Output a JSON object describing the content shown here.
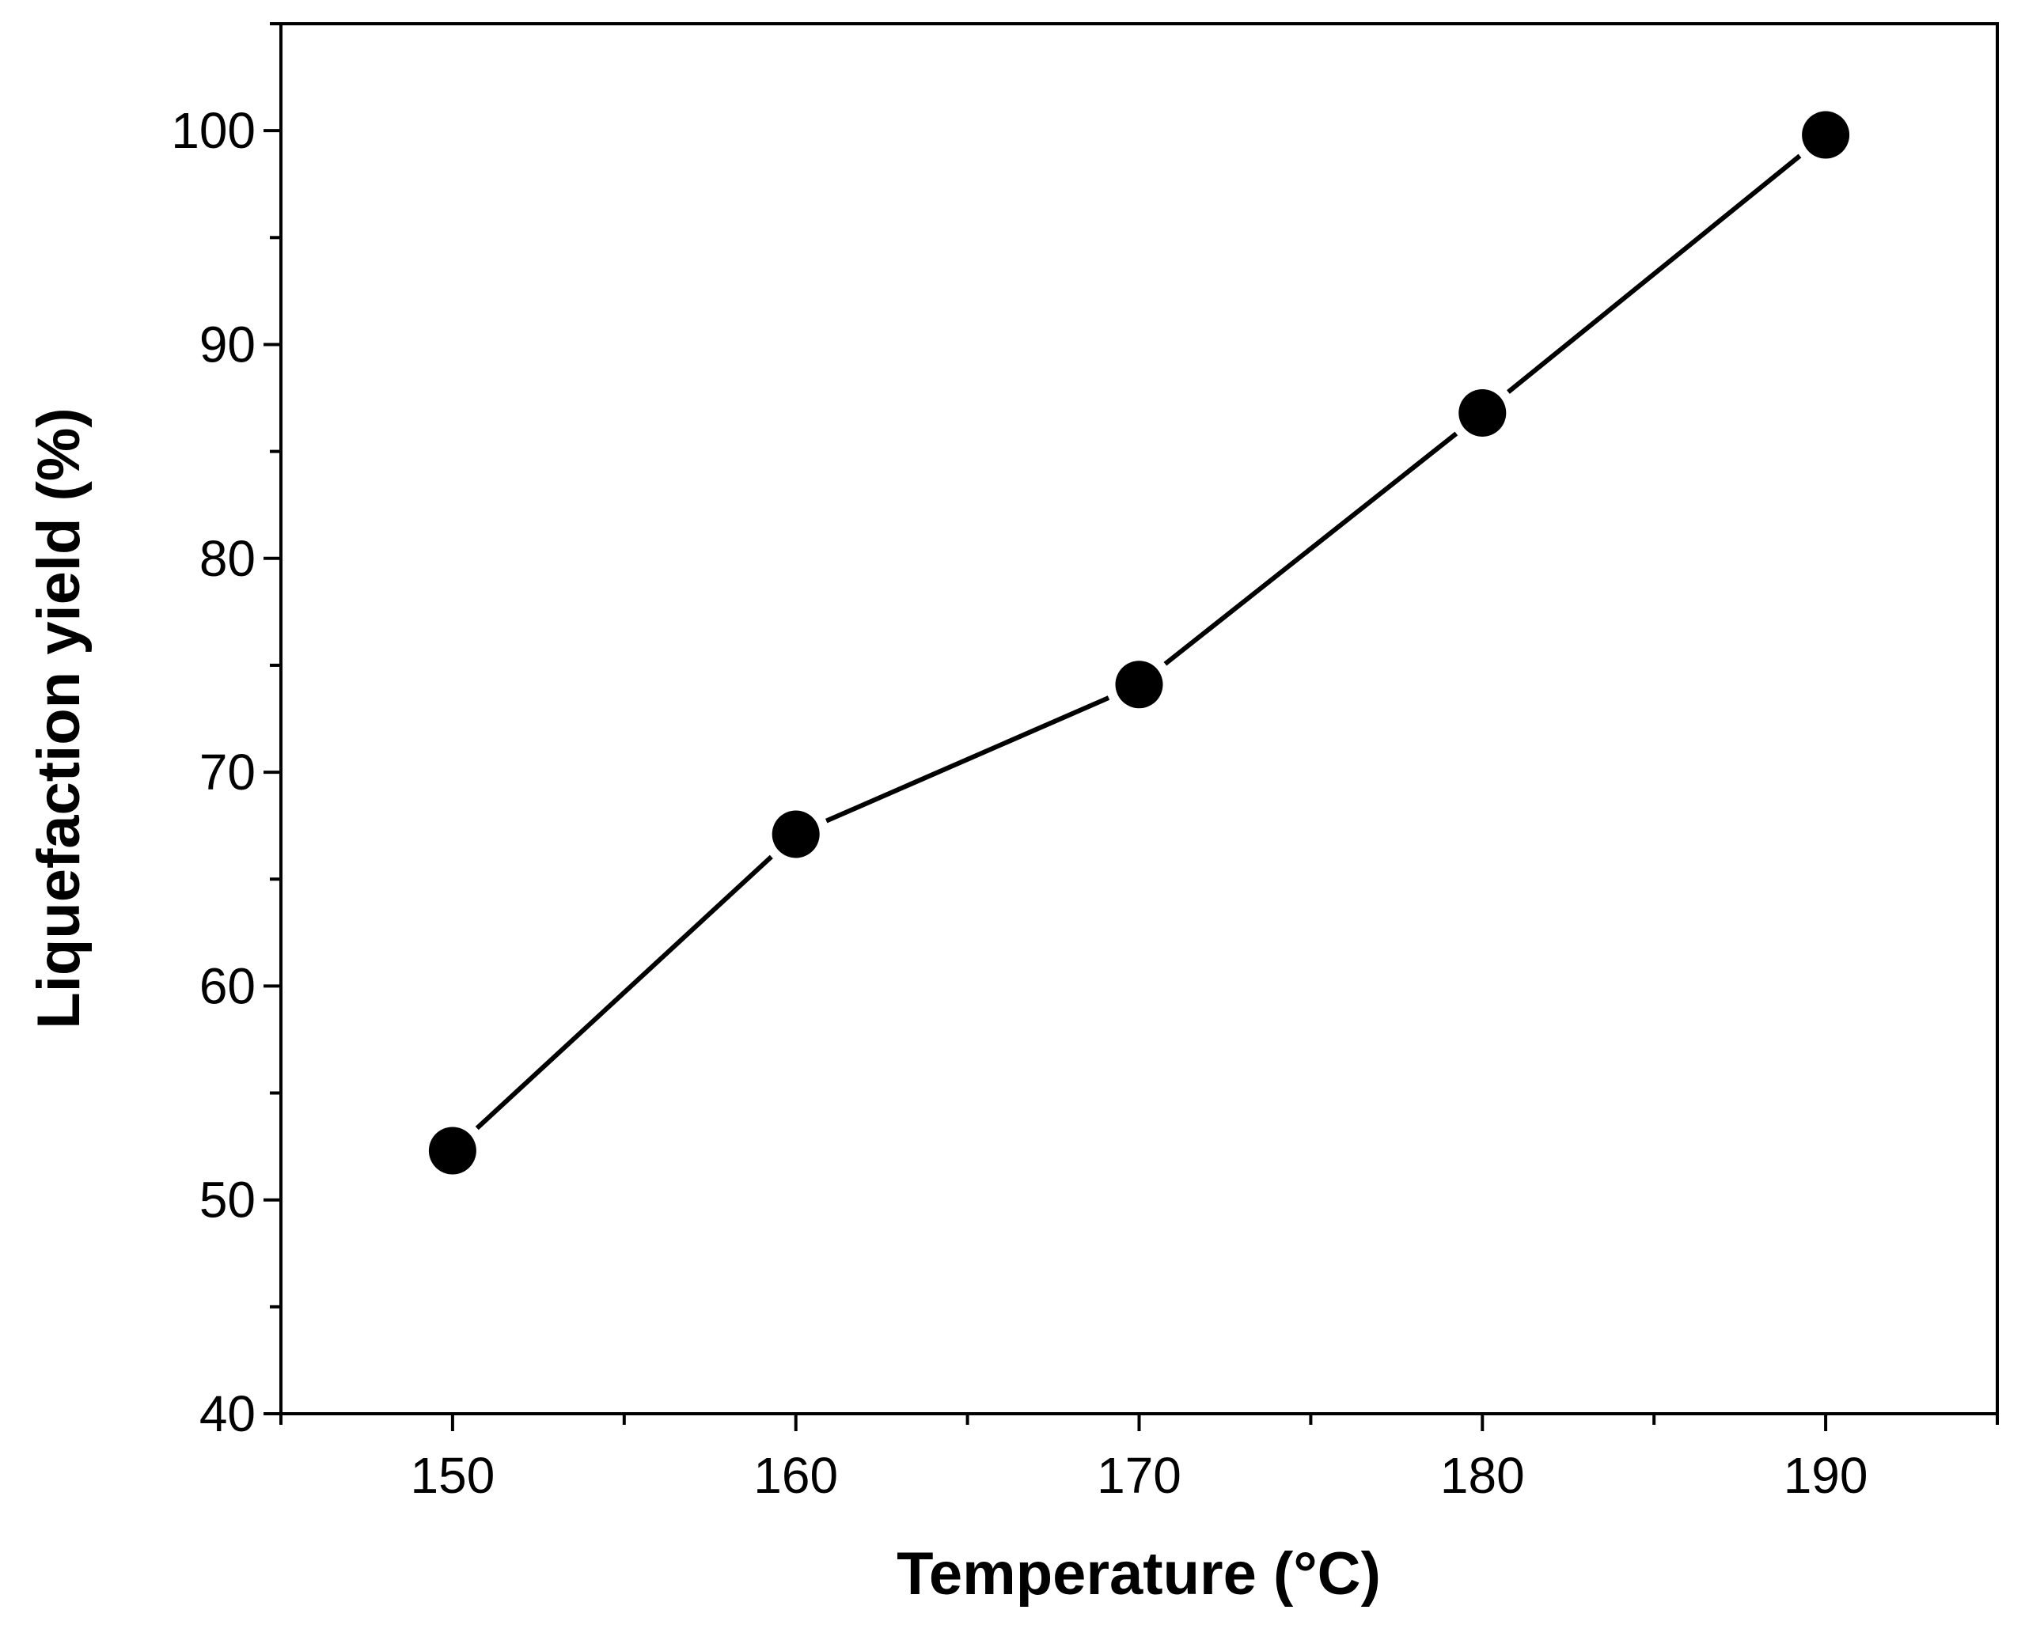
{
  "chart_data": {
    "type": "line",
    "title": "",
    "xlabel": "Temperature (°C)",
    "ylabel": "Liquefaction yield (%)",
    "xlim": [
      145,
      195
    ],
    "ylim": [
      40,
      105
    ],
    "x_ticks": [
      150,
      160,
      170,
      180,
      190
    ],
    "y_ticks": [
      40,
      50,
      60,
      70,
      80,
      90,
      100
    ],
    "grid": false,
    "legend": "none",
    "series": [
      {
        "name": "Liquefaction yield",
        "marker": "filled-circle",
        "color": "#000000",
        "x": [
          150,
          160,
          170,
          180,
          190
        ],
        "values": [
          52.3,
          67.1,
          74.1,
          86.8,
          99.8
        ]
      }
    ]
  }
}
